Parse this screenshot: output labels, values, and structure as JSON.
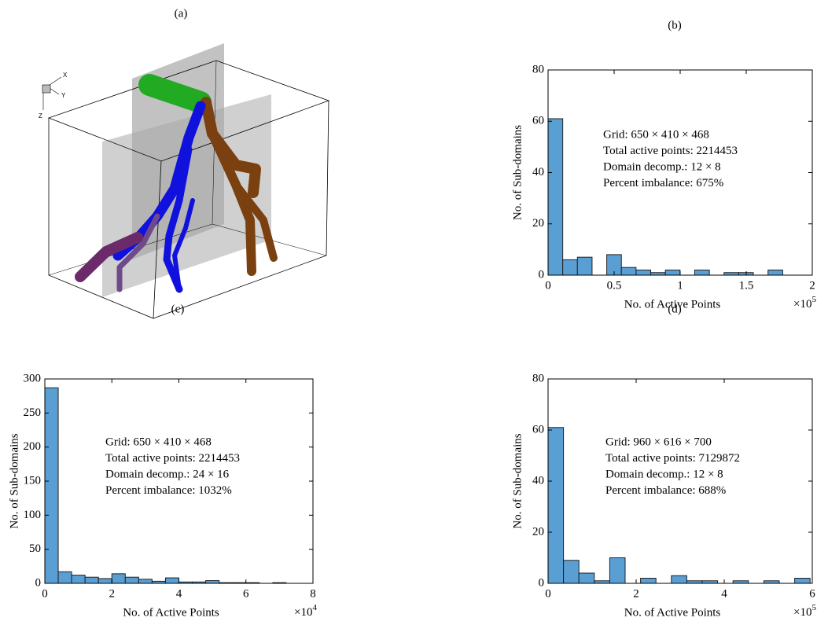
{
  "panel_labels": [
    "(a)",
    "(b)",
    "(c)",
    "(d)"
  ],
  "orientation_axes": [
    "X",
    "Y",
    "Z"
  ],
  "chart_data": [
    {
      "type": "histogram",
      "bins": [
        0,
        11100,
        22200,
        33300,
        44400,
        55500,
        66600,
        77700,
        88800,
        99900,
        111000,
        122100,
        133200,
        144300,
        155400,
        166500,
        177600
      ],
      "counts": [
        61,
        6,
        7,
        0,
        8,
        3,
        2,
        1,
        2,
        0,
        2,
        0,
        1,
        1,
        0,
        2
      ],
      "color": "#5a9fd4",
      "xlabel": "No. of Active Points",
      "ylabel": "No. of Sub-domains",
      "x_multiplier": {
        "base": "×10",
        "exponent": "5"
      },
      "xlim": [
        0,
        200000
      ],
      "ylim": [
        0,
        80
      ],
      "xticks": [
        0,
        {
          "value": 50000,
          "label": "0.5"
        },
        {
          "value": 100000,
          "label": "1"
        },
        {
          "value": 150000,
          "label": "1.5"
        },
        {
          "value": 200000,
          "label": "2"
        }
      ],
      "yticks": [
        0,
        20,
        40,
        60,
        80
      ],
      "annotations": [
        "Grid: 650 × 410 × 468",
        "Total active points: 2214453",
        "Domain decomp.: 12 × 8",
        "Percent imbalance: 675%"
      ]
    },
    {
      "type": "histogram",
      "bins": [
        0,
        4000,
        8000,
        12000,
        16000,
        20000,
        24000,
        28000,
        32000,
        36000,
        40000,
        44000,
        48000,
        52000,
        56000,
        60000,
        64000,
        68000,
        72000
      ],
      "counts": [
        287,
        17,
        12,
        9,
        7,
        14,
        9,
        6,
        3,
        8,
        2,
        2,
        4,
        1,
        1,
        1,
        0,
        1
      ],
      "color": "#5a9fd4",
      "xlabel": "No. of Active Points",
      "ylabel": "No. of Sub-domains",
      "x_multiplier": {
        "base": "×10",
        "exponent": "4"
      },
      "xlim": [
        0,
        80000
      ],
      "ylim": [
        0,
        300
      ],
      "xticks": [
        0,
        {
          "value": 20000,
          "label": "2"
        },
        {
          "value": 40000,
          "label": "4"
        },
        {
          "value": 60000,
          "label": "6"
        },
        {
          "value": 80000,
          "label": "8"
        }
      ],
      "yticks": [
        0,
        50,
        100,
        150,
        200,
        250,
        300
      ],
      "annotations": [
        "Grid: 650 × 410 × 468",
        "Total active points: 2214453",
        "Domain decomp.: 24 × 16",
        "Percent imbalance: 1032%"
      ]
    },
    {
      "type": "histogram",
      "bins": [
        0,
        35000,
        70000,
        105000,
        140000,
        175000,
        210000,
        245000,
        280000,
        315000,
        350000,
        385000,
        420000,
        455000,
        490000,
        525000,
        560000,
        595000
      ],
      "counts": [
        61,
        9,
        4,
        1,
        10,
        0,
        2,
        0,
        3,
        1,
        1,
        0,
        1,
        0,
        1,
        0,
        2
      ],
      "color": "#5a9fd4",
      "xlabel": "No. of Active Points",
      "ylabel": "No. of Sub-domains",
      "x_multiplier": {
        "base": "×10",
        "exponent": "5"
      },
      "xlim": [
        0,
        600000
      ],
      "ylim": [
        0,
        80
      ],
      "xticks": [
        0,
        {
          "value": 200000,
          "label": "2"
        },
        {
          "value": 400000,
          "label": "4"
        },
        {
          "value": 600000,
          "label": "6"
        }
      ],
      "yticks": [
        0,
        20,
        40,
        60,
        80
      ],
      "annotations": [
        "Grid: 960 × 616 × 700",
        "Total active points: 7129872",
        "Domain decomp.: 12 × 8",
        "Percent imbalance: 688%"
      ]
    }
  ]
}
